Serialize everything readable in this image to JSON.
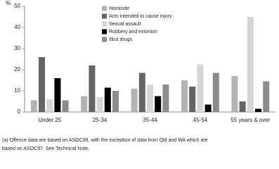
{
  "chart_data": {
    "type": "bar",
    "y_label": "%",
    "categories": [
      "Under 25",
      "25-34",
      "35-44",
      "45-54",
      "55 years & over"
    ],
    "series": [
      {
        "name": "Homicide",
        "color": "#b3b3b3",
        "values": [
          5.5,
          7.5,
          11,
          15,
          17
        ]
      },
      {
        "name": "Acts intended to cause injury",
        "color": "#646464",
        "values": [
          26,
          22,
          18.5,
          12,
          5
        ]
      },
      {
        "name": "Sexual assault",
        "color": "#d6d6d6",
        "values": [
          6,
          7,
          13,
          22.5,
          45
        ]
      },
      {
        "name": "Robbery and extortion",
        "color": "#000000",
        "values": [
          16,
          11.5,
          7.5,
          3.5,
          1.5
        ]
      },
      {
        "name": "Illicit drugs",
        "color": "#8c8c8c",
        "values": [
          5.5,
          10,
          13,
          18.5,
          14.5
        ]
      }
    ],
    "ylim": [
      0,
      50
    ],
    "yticks": [
      0,
      10,
      20,
      30,
      40,
      50
    ],
    "footnote": [
      "(a) Offence data are based on ASOC08, with the exception of data from Qld and WA which are",
      "based on ASOC97. See Technical Note."
    ]
  }
}
